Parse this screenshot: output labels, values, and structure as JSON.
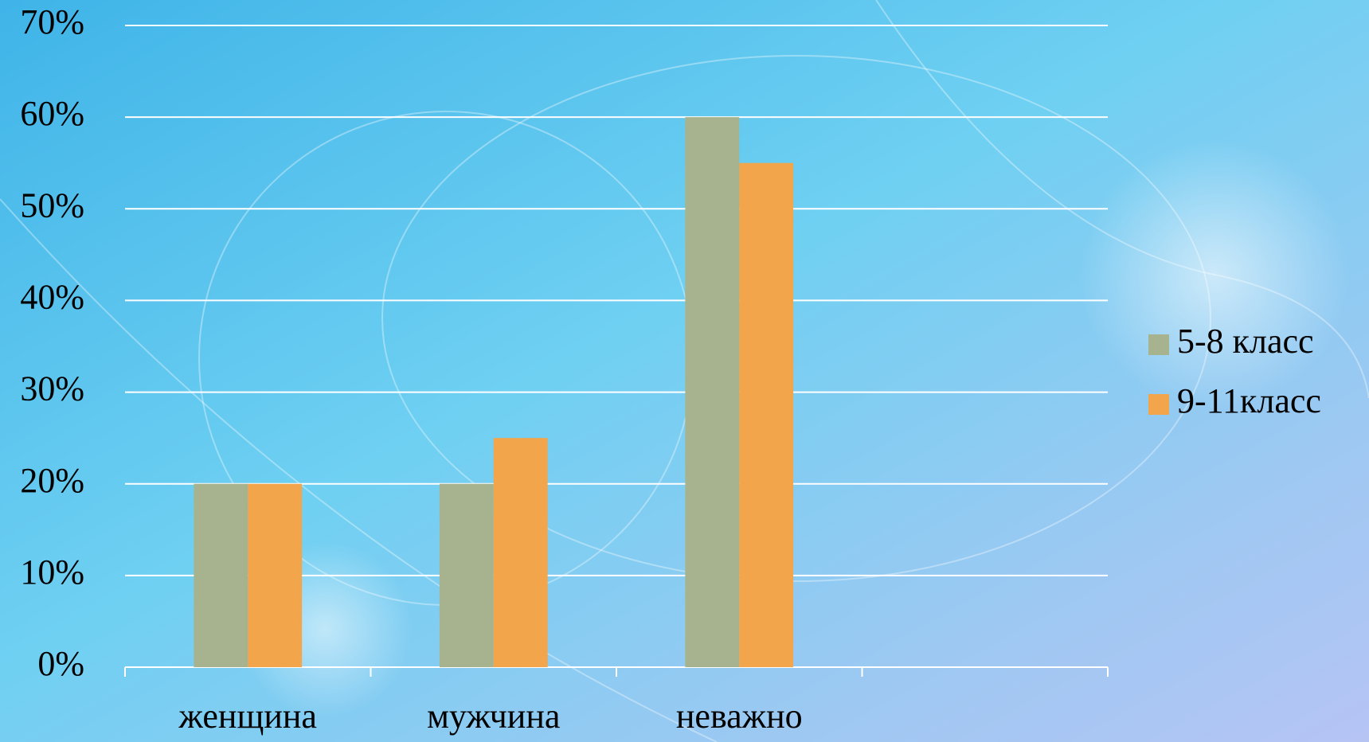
{
  "chart_data": {
    "type": "bar",
    "categories": [
      "женщина",
      "мужчина",
      "неважно",
      null
    ],
    "series": [
      {
        "name": "5-8 класс",
        "color": "#a6b38e",
        "values": [
          20,
          20,
          60,
          null
        ]
      },
      {
        "name": "9-11класс",
        "color": "#f2a54a",
        "values": [
          20,
          25,
          55,
          null
        ]
      }
    ],
    "ylim": [
      0,
      70
    ],
    "yticks": [
      {
        "value": 0,
        "label": "0%"
      },
      {
        "value": 10,
        "label": "10%"
      },
      {
        "value": 20,
        "label": "20%"
      },
      {
        "value": 30,
        "label": "30%"
      },
      {
        "value": 40,
        "label": "40%"
      },
      {
        "value": 50,
        "label": "50%"
      },
      {
        "value": 60,
        "label": "60%"
      },
      {
        "value": 70,
        "label": "70%"
      }
    ],
    "grid": true,
    "legend": "right"
  }
}
